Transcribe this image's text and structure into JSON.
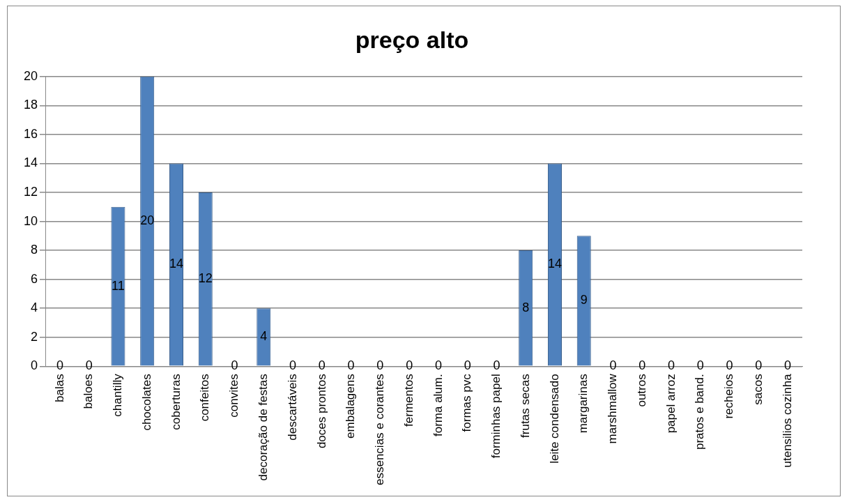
{
  "chart_data": {
    "type": "bar",
    "title": "preço alto",
    "categories": [
      "balas",
      "baloes",
      "chantilly",
      "chocolates",
      "coberturas",
      "confeitos",
      "convites",
      "decoração de festas",
      "descartáveis",
      "doces prontos",
      "embalagens",
      "essencias e corantes",
      "fermentos",
      "forma alum.",
      "formas pvc",
      "forminhas papel",
      "frutas secas",
      "leite condensado",
      "margarinas",
      "marshmallow",
      "outros",
      "papel arroz",
      "pratos e band.",
      "recheios",
      "sacos",
      "utensilios cozinha"
    ],
    "values": [
      0,
      0,
      11,
      20,
      14,
      12,
      0,
      4,
      0,
      0,
      0,
      0,
      0,
      0,
      0,
      0,
      8,
      14,
      9,
      0,
      0,
      0,
      0,
      0,
      0,
      0
    ],
    "color": "#4f81bd",
    "ylim": [
      0,
      20
    ],
    "yticks": [
      0,
      2,
      4,
      6,
      8,
      10,
      12,
      14,
      16,
      18,
      20
    ],
    "grid": "y",
    "legend": false,
    "data_labels": true
  }
}
